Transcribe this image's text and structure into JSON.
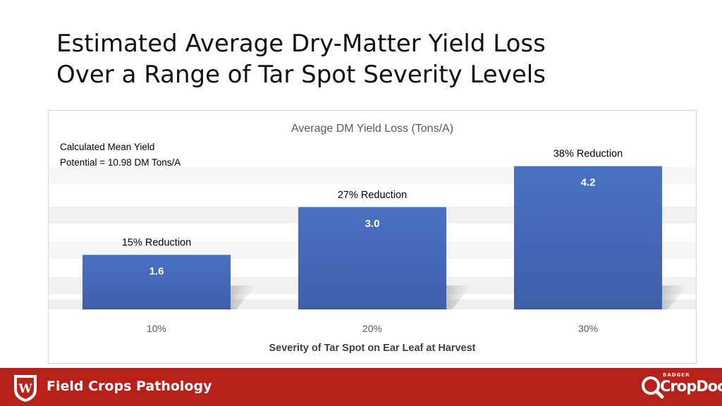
{
  "title": {
    "line1": "Estimated Average Dry-Matter Yield Loss",
    "line2": "Over a Range of Tar Spot Severity Levels"
  },
  "chart_data": {
    "type": "bar",
    "title": "Average DM Yield Loss (Tons/A)",
    "xlabel": "Severity of Tar Spot on Ear Leaf at Harvest",
    "ylabel": "",
    "categories": [
      "10%",
      "20%",
      "30%"
    ],
    "values": [
      1.6,
      3.0,
      4.2
    ],
    "value_labels": [
      "1.6",
      "3.0",
      "4.2"
    ],
    "annotations": [
      "15% Reduction",
      "27% Reduction",
      "38% Reduction"
    ],
    "note_lines": [
      "Calculated Mean Yield",
      "Potential = 10.98 DM Tons/A"
    ],
    "ylim": [
      0,
      5
    ],
    "grid": false,
    "legend": "none",
    "bar_color": "#4a6fc0"
  },
  "footer": {
    "label": "Field Crops Pathology",
    "logo_top": "BADGER",
    "logo_word": "CropDoc",
    "crest_letter": "W",
    "background": "#b8211a"
  }
}
